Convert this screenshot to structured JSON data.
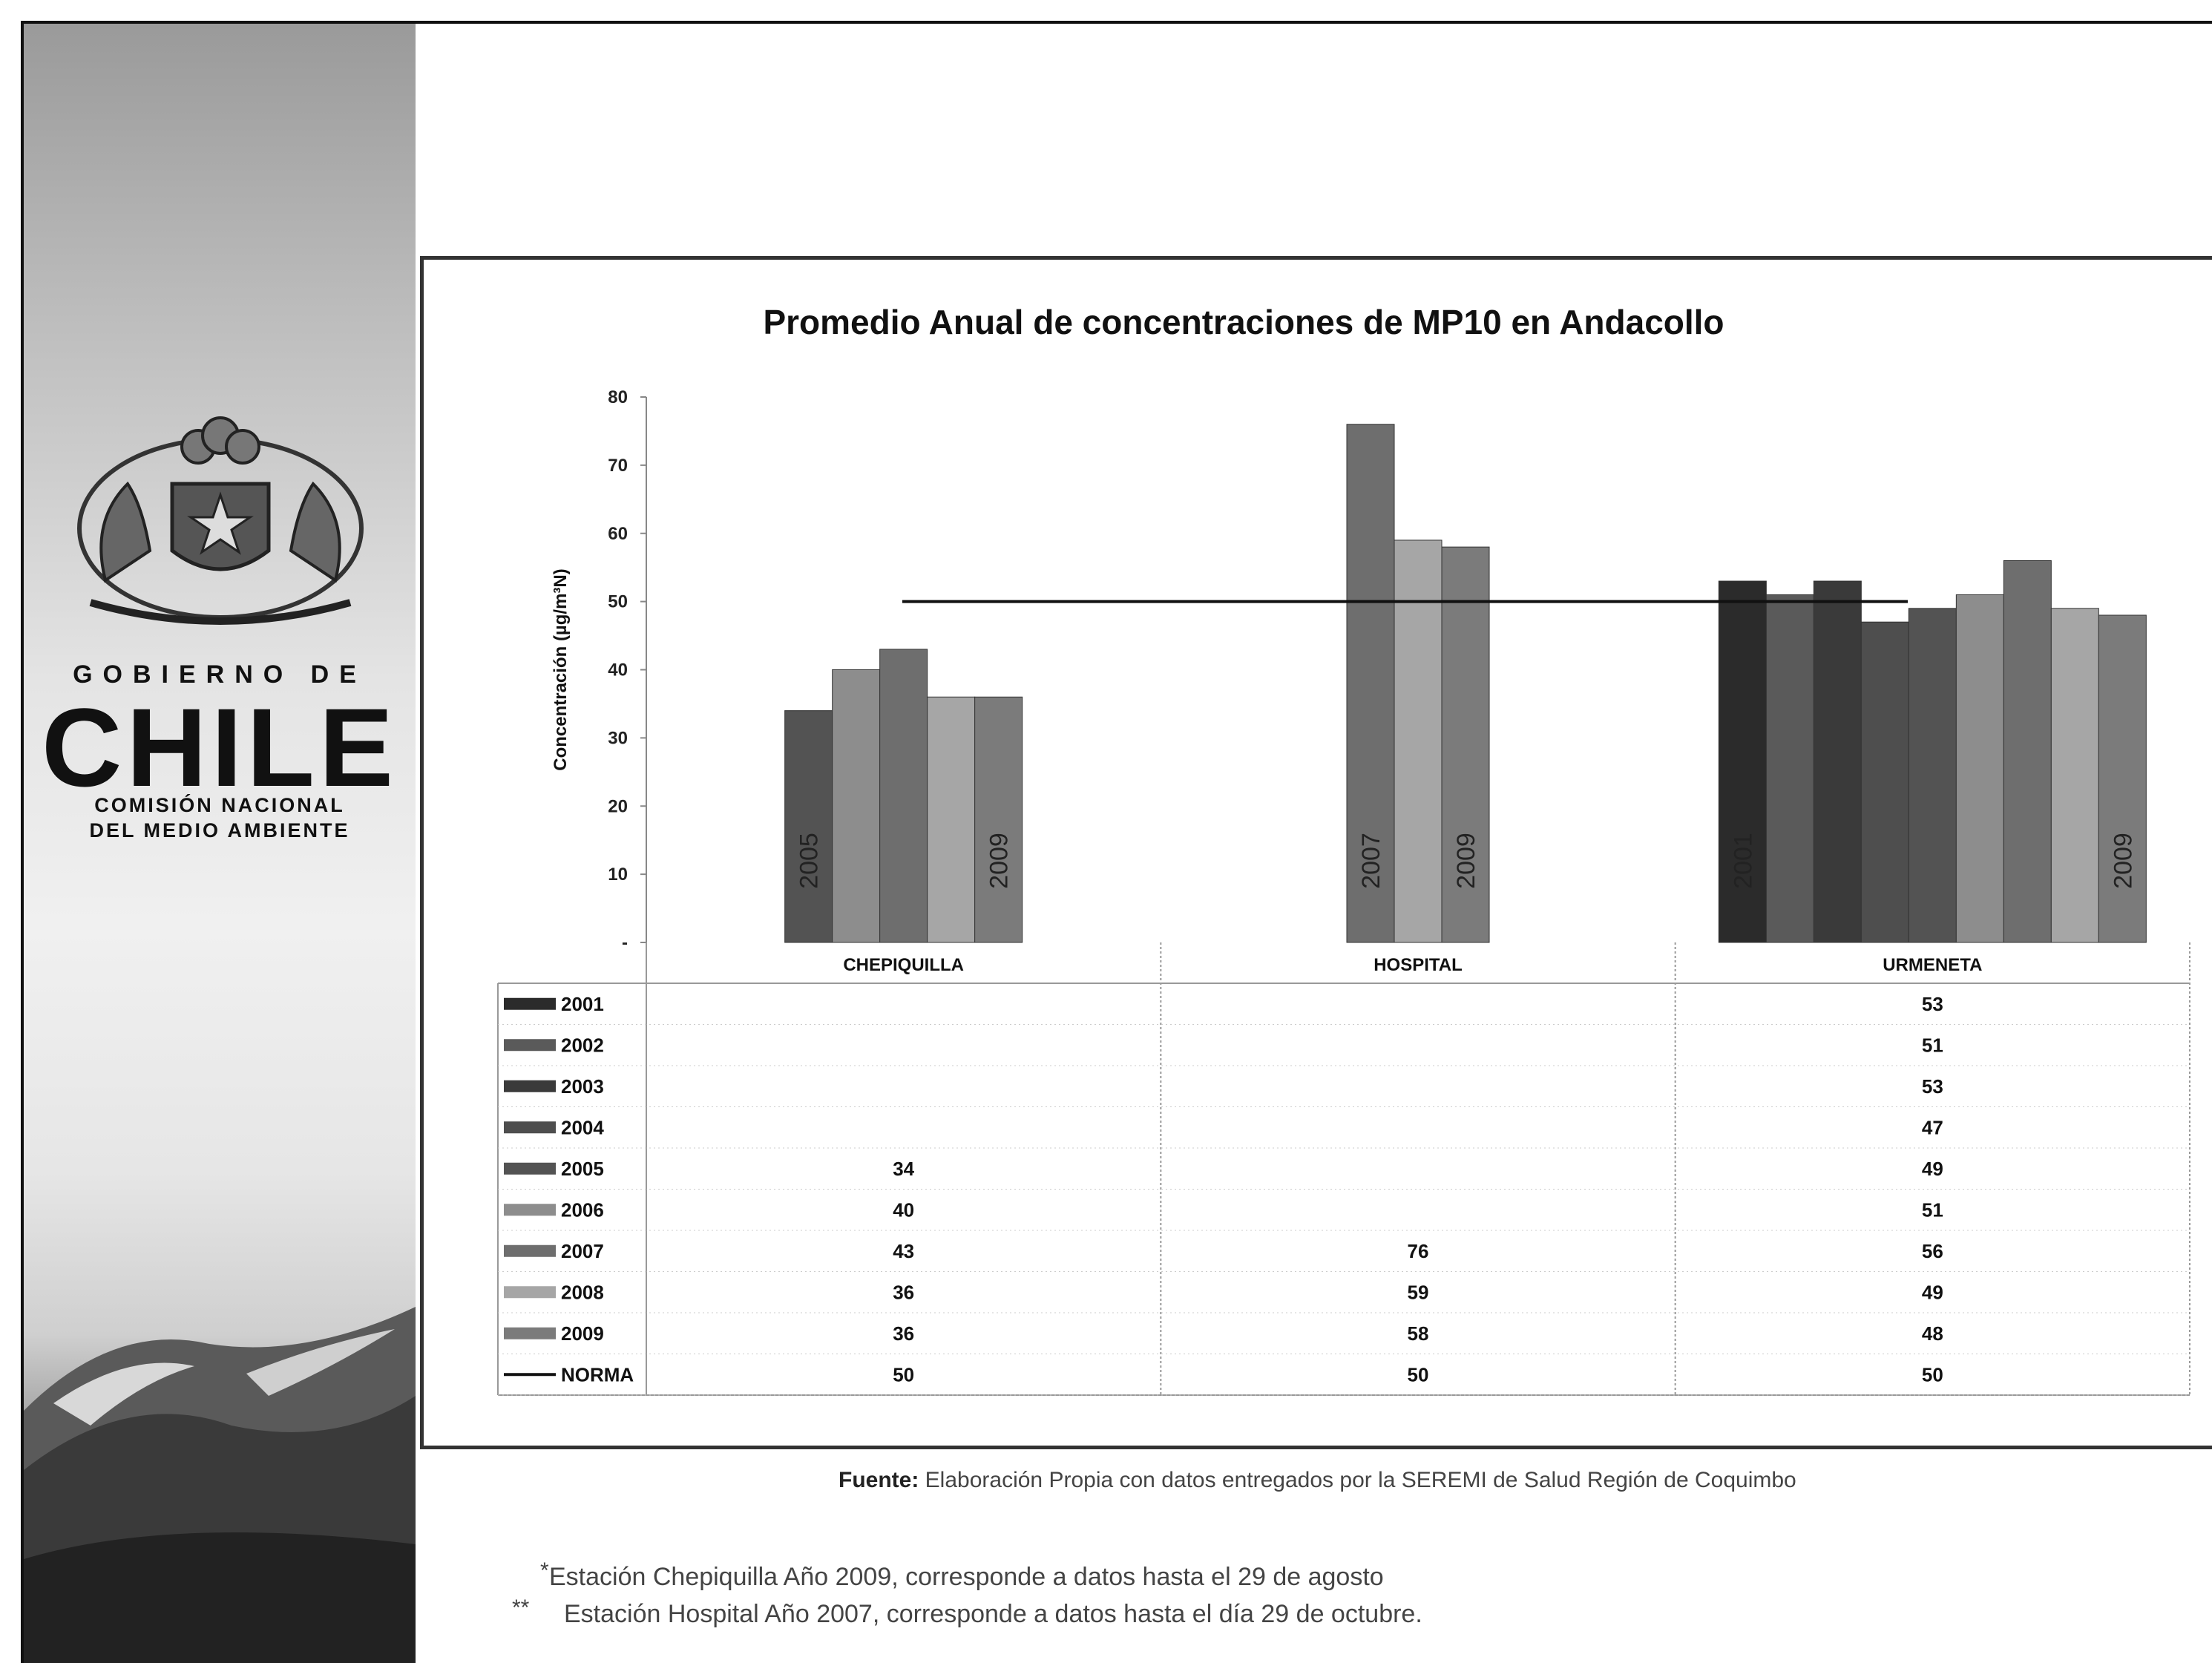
{
  "logo": {
    "line1": "GOBIERNO DE",
    "line2": "CHILE",
    "line3": "COMISIÓN NACIONAL",
    "line4": "DEL MEDIO AMBIENTE"
  },
  "chart_data": {
    "type": "bar",
    "title": "Promedio Anual de concentraciones de MP10 en Andacollo",
    "ylabel": "Concentración (µg/m³N)",
    "xlabel": "",
    "ylim": [
      0,
      80
    ],
    "yticks": [
      "-",
      "10",
      "20",
      "30",
      "40",
      "50",
      "60",
      "70",
      "80"
    ],
    "categories": [
      "CHEPIQUILLA",
      "HOSPITAL",
      "URMENETA"
    ],
    "grid": false,
    "legend": "data-table-below",
    "series": [
      {
        "name": "2001",
        "values": [
          null,
          null,
          53
        ],
        "color": "#2b2b2b"
      },
      {
        "name": "2002",
        "values": [
          null,
          null,
          51
        ],
        "color": "#5a5a5a"
      },
      {
        "name": "2003",
        "values": [
          null,
          null,
          53
        ],
        "color": "#3a3a3a"
      },
      {
        "name": "2004",
        "values": [
          null,
          null,
          47
        ],
        "color": "#4e4e4e"
      },
      {
        "name": "2005",
        "values": [
          34,
          null,
          49
        ],
        "color": "#535353"
      },
      {
        "name": "2006",
        "values": [
          40,
          null,
          51
        ],
        "color": "#8d8d8d"
      },
      {
        "name": "2007",
        "values": [
          43,
          76,
          56
        ],
        "color": "#6e6e6e"
      },
      {
        "name": "2008",
        "values": [
          36,
          59,
          49
        ],
        "color": "#a6a6a6"
      },
      {
        "name": "2009",
        "values": [
          36,
          58,
          48
        ],
        "color": "#7b7b7b"
      }
    ],
    "norma": {
      "name": "NORMA",
      "values": [
        50,
        50,
        50
      ]
    },
    "bar_labels": [
      {
        "category": "CHEPIQUILLA",
        "series": "2005",
        "text": "2005"
      },
      {
        "category": "CHEPIQUILLA",
        "series": "2009",
        "text": "2009"
      },
      {
        "category": "HOSPITAL",
        "series": "2007",
        "text": "2007"
      },
      {
        "category": "HOSPITAL",
        "series": "2009",
        "text": "2009"
      },
      {
        "category": "URMENETA",
        "series": "2001",
        "text": "2001"
      },
      {
        "category": "URMENETA",
        "series": "2009",
        "text": "2009"
      }
    ]
  },
  "source": {
    "label": "Fuente:",
    "text": "Elaboración Propia con datos entregados por la SEREMI de Salud Región de Coquimbo"
  },
  "notes": [
    {
      "mark": "*",
      "text": "Estación Chepiquilla Año 2009, corresponde a datos hasta el 29 de agosto"
    },
    {
      "mark": "**",
      "text": "Estación Hospital Año 2007, corresponde a datos hasta el día 29 de octubre."
    }
  ]
}
